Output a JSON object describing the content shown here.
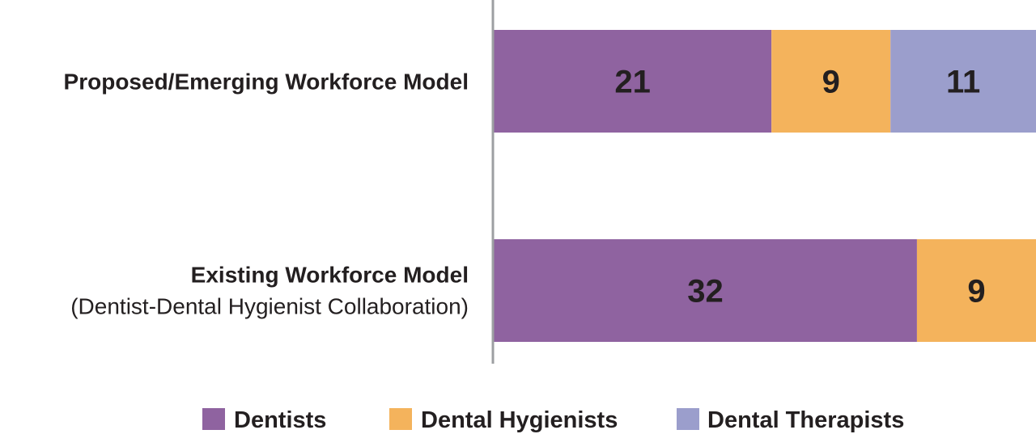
{
  "chart_data": {
    "type": "bar",
    "orientation": "horizontal",
    "stacked": true,
    "categories": [
      {
        "label": "Proposed/Emerging Workforce Model",
        "sublabel": ""
      },
      {
        "label": "Existing Workforce Model",
        "sublabel": "(Dentist-Dental Hygienist Collaboration)"
      }
    ],
    "series": [
      {
        "name": "Dentists",
        "color": "#8f63a0",
        "values": [
          21,
          32
        ]
      },
      {
        "name": "Dental Hygienists",
        "color": "#f4b35c",
        "values": [
          9,
          9
        ]
      },
      {
        "name": "Dental Therapists",
        "color": "#9b9ecc",
        "values": [
          11,
          0
        ]
      }
    ],
    "xlim": [
      0,
      41
    ],
    "grid": false,
    "legend": "bottom",
    "axis_color": "#9d9fa2"
  }
}
